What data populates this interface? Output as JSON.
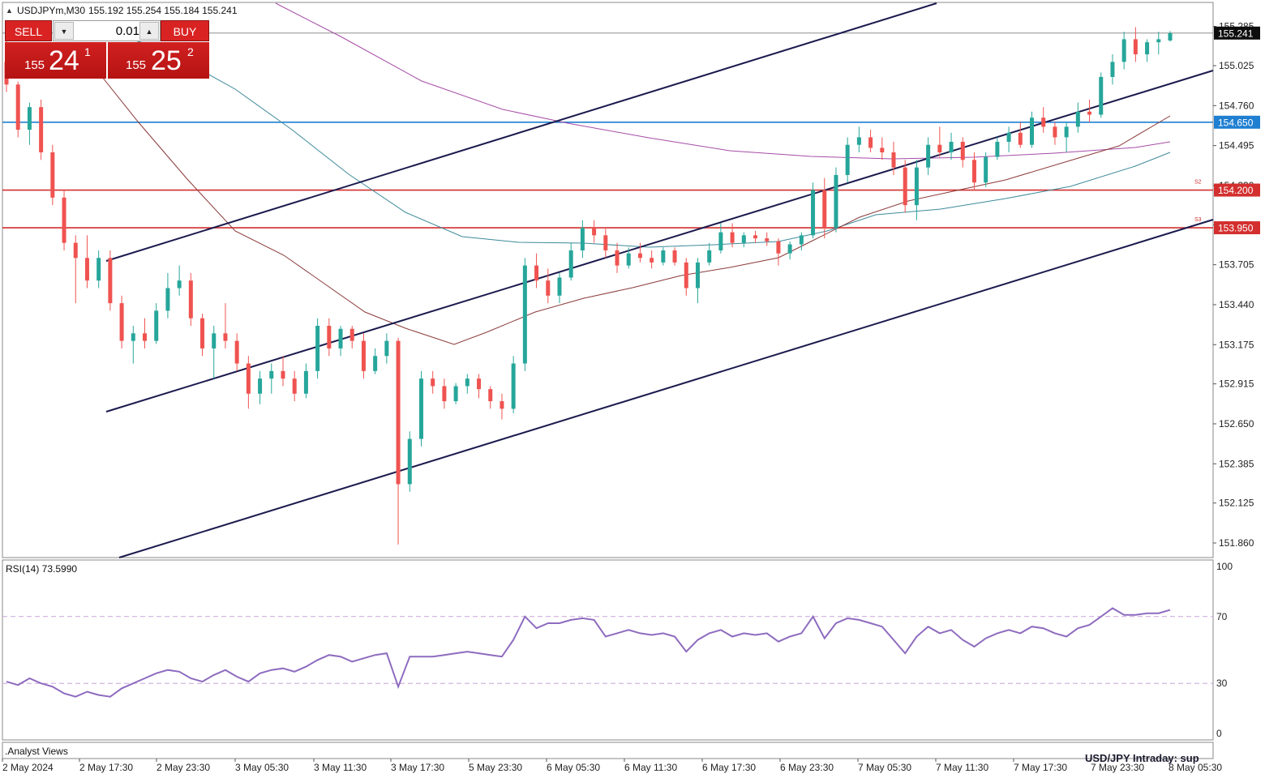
{
  "header": {
    "symbol": "USDJPYm,M30",
    "ohlc": "155.192 155.254 155.184 155.241"
  },
  "trade_panel": {
    "sell_label": "SELL",
    "buy_label": "BUY",
    "lot": "0.01",
    "sell_small": "155",
    "sell_big": "24",
    "sell_sup": "1",
    "buy_small": "155",
    "buy_big": "25",
    "buy_sup": "2"
  },
  "indicator": {
    "rsi_label": "RSI(14) 73.5990",
    "rsi_levels": [
      "100",
      "70",
      "30",
      "0"
    ]
  },
  "footer": {
    "analyst_label": ".Analyst Views",
    "watermark": "USD/JPY Intraday: sup"
  },
  "colors": {
    "bull": "#26a69a",
    "bear": "#ef5350",
    "hline_blue": "#1f7fd1",
    "hline_red": "#d32f2f",
    "channel": "#1a1a4e",
    "ma_purple": "#a64ca6",
    "ma_brown": "#8b3a3a",
    "ma_teal": "#3d8a9a",
    "rsi": "#8e6bbf"
  },
  "chart_data": {
    "type": "candlestick",
    "symbol": "USDJPYm",
    "timeframe": "M30",
    "ylim": [
      151.75,
      155.43
    ],
    "y_ticks": [
      "155.285",
      "155.025",
      "154.760",
      "154.495",
      "154.230",
      "153.970",
      "153.705",
      "153.440",
      "153.175",
      "152.915",
      "152.650",
      "152.385",
      "152.125",
      "151.860"
    ],
    "x_ticks": [
      "2 May 2024",
      "2 May 17:30",
      "2 May 23:30",
      "3 May 05:30",
      "3 May 11:30",
      "3 May 17:30",
      "5 May 23:30",
      "6 May 05:30",
      "6 May 11:30",
      "6 May 17:30",
      "6 May 23:30",
      "7 May 05:30",
      "7 May 11:30",
      "7 May 17:30",
      "7 May 23:30",
      "8 May 05:30"
    ],
    "current_price": 155.241,
    "horizontal_levels": [
      {
        "value": 154.65,
        "label": "154.650",
        "color": "blue",
        "tag": ""
      },
      {
        "value": 154.2,
        "label": "154.200",
        "color": "red",
        "tag": "S2"
      },
      {
        "value": 153.95,
        "label": "153.950",
        "color": "red",
        "tag": "S3"
      }
    ],
    "ohlc": [
      [
        155.05,
        155.25,
        154.85,
        154.9
      ],
      [
        154.9,
        154.92,
        154.55,
        154.6
      ],
      [
        154.6,
        154.78,
        154.5,
        154.75
      ],
      [
        154.75,
        154.8,
        154.4,
        154.45
      ],
      [
        154.45,
        154.5,
        154.1,
        154.15
      ],
      [
        154.15,
        154.2,
        153.8,
        153.85
      ],
      [
        153.85,
        153.9,
        153.45,
        153.75
      ],
      [
        153.75,
        153.9,
        153.55,
        153.6
      ],
      [
        153.6,
        153.8,
        153.55,
        153.75
      ],
      [
        153.75,
        153.8,
        153.4,
        153.45
      ],
      [
        153.45,
        153.5,
        153.15,
        153.2
      ],
      [
        153.2,
        153.3,
        153.05,
        153.25
      ],
      [
        153.25,
        153.35,
        153.15,
        153.2
      ],
      [
        153.2,
        153.45,
        153.18,
        153.4
      ],
      [
        153.4,
        153.65,
        153.35,
        153.55
      ],
      [
        153.55,
        153.7,
        153.5,
        153.6
      ],
      [
        153.6,
        153.65,
        153.3,
        153.35
      ],
      [
        153.35,
        153.38,
        153.1,
        153.15
      ],
      [
        153.15,
        153.3,
        152.95,
        153.25
      ],
      [
        153.25,
        153.45,
        153.15,
        153.2
      ],
      [
        153.2,
        153.25,
        153.0,
        153.05
      ],
      [
        153.05,
        153.1,
        152.75,
        152.85
      ],
      [
        152.85,
        153.0,
        152.78,
        152.95
      ],
      [
        152.95,
        153.05,
        152.85,
        153.0
      ],
      [
        153.0,
        153.1,
        152.9,
        152.95
      ],
      [
        152.95,
        153.0,
        152.8,
        152.85
      ],
      [
        152.85,
        153.05,
        152.82,
        153.0
      ],
      [
        153.0,
        153.35,
        152.95,
        153.3
      ],
      [
        153.3,
        153.35,
        153.1,
        153.15
      ],
      [
        153.15,
        153.3,
        153.1,
        153.28
      ],
      [
        153.28,
        153.3,
        153.15,
        153.2
      ],
      [
        153.2,
        153.25,
        152.95,
        153.0
      ],
      [
        153.0,
        153.15,
        152.98,
        153.1
      ],
      [
        153.1,
        153.25,
        153.05,
        153.2
      ],
      [
        153.2,
        153.22,
        151.85,
        152.25
      ],
      [
        152.25,
        152.6,
        152.2,
        152.55
      ],
      [
        152.55,
        153.0,
        152.5,
        152.95
      ],
      [
        152.95,
        153.0,
        152.85,
        152.9
      ],
      [
        152.9,
        152.95,
        152.75,
        152.8
      ],
      [
        152.8,
        152.92,
        152.78,
        152.9
      ],
      [
        152.9,
        152.98,
        152.85,
        152.95
      ],
      [
        152.95,
        152.98,
        152.82,
        152.88
      ],
      [
        152.88,
        152.9,
        152.75,
        152.8
      ],
      [
        152.8,
        152.85,
        152.68,
        152.75
      ],
      [
        152.75,
        153.1,
        152.72,
        153.05
      ],
      [
        153.05,
        153.75,
        153.0,
        153.7
      ],
      [
        153.7,
        153.78,
        153.55,
        153.6
      ],
      [
        153.6,
        153.68,
        153.45,
        153.5
      ],
      [
        153.5,
        153.65,
        153.45,
        153.62
      ],
      [
        153.62,
        153.85,
        153.6,
        153.8
      ],
      [
        153.8,
        154.0,
        153.75,
        153.95
      ],
      [
        153.95,
        154.0,
        153.85,
        153.9
      ],
      [
        153.9,
        153.95,
        153.75,
        153.8
      ],
      [
        153.8,
        153.85,
        153.65,
        153.7
      ],
      [
        153.7,
        153.82,
        153.68,
        153.78
      ],
      [
        153.78,
        153.85,
        153.72,
        153.75
      ],
      [
        153.75,
        153.8,
        153.68,
        153.72
      ],
      [
        153.72,
        153.82,
        153.7,
        153.8
      ],
      [
        153.8,
        153.82,
        153.7,
        153.72
      ],
      [
        153.72,
        153.75,
        153.5,
        153.55
      ],
      [
        153.55,
        153.75,
        153.45,
        153.72
      ],
      [
        153.72,
        153.85,
        153.7,
        153.8
      ],
      [
        153.8,
        153.98,
        153.78,
        153.92
      ],
      [
        153.92,
        153.98,
        153.82,
        153.85
      ],
      [
        153.85,
        153.92,
        153.82,
        153.9
      ],
      [
        153.9,
        153.93,
        153.85,
        153.88
      ],
      [
        153.88,
        153.92,
        153.83,
        153.86
      ],
      [
        153.86,
        153.88,
        153.7,
        153.78
      ],
      [
        153.78,
        153.86,
        153.74,
        153.84
      ],
      [
        153.84,
        153.92,
        153.8,
        153.9
      ],
      [
        153.9,
        154.25,
        153.88,
        154.2
      ],
      [
        154.2,
        154.28,
        153.88,
        153.95
      ],
      [
        153.95,
        154.35,
        153.92,
        154.3
      ],
      [
        154.3,
        154.55,
        154.25,
        154.5
      ],
      [
        154.5,
        154.62,
        154.45,
        154.55
      ],
      [
        154.55,
        154.6,
        154.45,
        154.48
      ],
      [
        154.48,
        154.55,
        154.4,
        154.45
      ],
      [
        154.45,
        154.52,
        154.3,
        154.35
      ],
      [
        154.35,
        154.4,
        154.05,
        154.1
      ],
      [
        154.1,
        154.4,
        154.0,
        154.35
      ],
      [
        154.35,
        154.55,
        154.3,
        154.5
      ],
      [
        154.5,
        154.62,
        154.42,
        154.45
      ],
      [
        154.45,
        154.58,
        154.4,
        154.52
      ],
      [
        154.52,
        154.55,
        154.35,
        154.4
      ],
      [
        154.4,
        154.45,
        154.2,
        154.25
      ],
      [
        154.25,
        154.45,
        154.22,
        154.42
      ],
      [
        154.42,
        154.55,
        154.4,
        154.52
      ],
      [
        154.52,
        154.62,
        154.45,
        154.58
      ],
      [
        154.58,
        154.65,
        154.48,
        154.5
      ],
      [
        154.5,
        154.72,
        154.48,
        154.68
      ],
      [
        154.68,
        154.75,
        154.58,
        154.62
      ],
      [
        154.62,
        154.65,
        154.5,
        154.55
      ],
      [
        154.55,
        154.65,
        154.45,
        154.62
      ],
      [
        154.62,
        154.78,
        154.58,
        154.72
      ],
      [
        154.72,
        154.8,
        154.65,
        154.7
      ],
      [
        154.7,
        154.98,
        154.68,
        154.95
      ],
      [
        154.95,
        155.1,
        154.9,
        155.05
      ],
      [
        155.05,
        155.25,
        155.0,
        155.2
      ],
      [
        155.2,
        155.28,
        155.05,
        155.1
      ],
      [
        155.1,
        155.2,
        155.05,
        155.18
      ],
      [
        155.18,
        155.25,
        155.1,
        155.2
      ],
      [
        155.192,
        155.254,
        155.184,
        155.241
      ]
    ],
    "rsi_period": 14,
    "rsi_value": 73.599,
    "rsi_levels": [
      70,
      30
    ],
    "rsi_ylim": [
      0,
      100
    ],
    "rsi": [
      31,
      29,
      33,
      30,
      28,
      24,
      22,
      25,
      23,
      22,
      27,
      30,
      33,
      36,
      38,
      37,
      33,
      31,
      35,
      38,
      34,
      31,
      36,
      38,
      39,
      37,
      40,
      44,
      47,
      46,
      43,
      45,
      47,
      48,
      28,
      46,
      46,
      46,
      47,
      48,
      49,
      48,
      47,
      46,
      56,
      70,
      63,
      66,
      66,
      68,
      69,
      68,
      58,
      60,
      62,
      60,
      59,
      60,
      58,
      49,
      56,
      60,
      62,
      58,
      60,
      59,
      60,
      55,
      58,
      60,
      70,
      57,
      66,
      69,
      68,
      66,
      64,
      56,
      48,
      58,
      64,
      60,
      62,
      56,
      52,
      57,
      60,
      62,
      60,
      64,
      63,
      60,
      58,
      63,
      65,
      70,
      75,
      71,
      71,
      72,
      72,
      74
    ]
  }
}
